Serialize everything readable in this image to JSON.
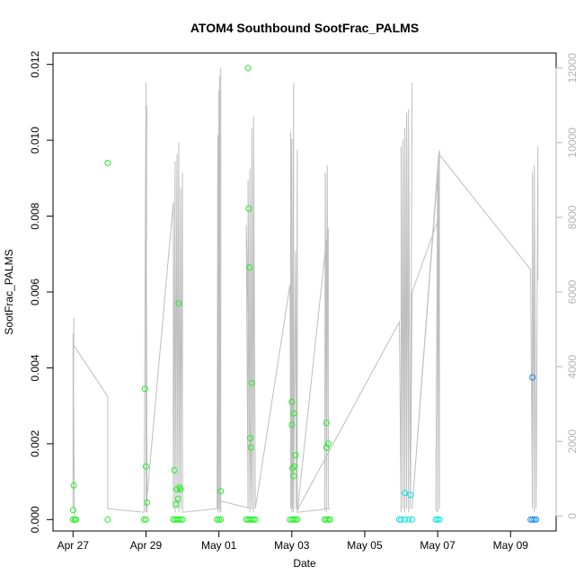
{
  "chart_data": {
    "type": "scatter",
    "title": "ATOM4 Southbound SootFrac_PALMS",
    "xlabel": "Date",
    "ylabel": "SootFrac_PALMS",
    "x_ticks": [
      "Apr 27",
      "Apr 29",
      "May 01",
      "May 03",
      "May 05",
      "May 07",
      "May 09"
    ],
    "x_tick_days": [
      0,
      2,
      4,
      6,
      8,
      10,
      12
    ],
    "xlim_days": [
      -0.55,
      13.25
    ],
    "y_ticks": [
      "0.000",
      "0.002",
      "0.004",
      "0.006",
      "0.008",
      "0.010",
      "0.012"
    ],
    "ylim": [
      -0.0003,
      0.0123
    ],
    "y2_ticks": [
      "0",
      "2000",
      "4000",
      "6000",
      "8000",
      "10000",
      "12000"
    ],
    "y2lim": [
      -400,
      12400
    ],
    "grid": false,
    "series": [
      {
        "values": [
          [
            0.0,
            0.0
          ],
          [
            0.05,
            0.0
          ],
          [
            0.08,
            0.0
          ],
          [
            0.0,
            0.00025
          ],
          [
            0.02,
            0.0009
          ],
          [
            0.95,
            0.0094
          ],
          [
            0.95,
            0.0
          ],
          [
            1.95,
            0.0
          ],
          [
            2.0,
            0.0
          ],
          [
            1.97,
            0.00345
          ],
          [
            2.0,
            0.0014
          ],
          [
            2.03,
            0.00045
          ],
          [
            2.75,
            0.0
          ],
          [
            2.8,
            0.0
          ],
          [
            2.85,
            0.0
          ],
          [
            2.9,
            0.0
          ],
          [
            2.95,
            0.0
          ],
          [
            2.78,
            0.0013
          ],
          [
            2.82,
            0.0004
          ],
          [
            2.85,
            0.0008
          ],
          [
            2.88,
            0.00055
          ],
          [
            2.9,
            0.0057
          ],
          [
            2.92,
            0.00085
          ],
          [
            2.95,
            0.0008
          ],
          [
            3.0,
            0.0
          ],
          [
            3.95,
            0.0
          ],
          [
            4.0,
            0.0
          ],
          [
            4.05,
            0.0
          ],
          [
            4.05,
            0.00075
          ],
          [
            4.75,
            0.0
          ],
          [
            4.8,
            0.0
          ],
          [
            4.85,
            0.0
          ],
          [
            4.9,
            0.0
          ],
          [
            4.95,
            0.0
          ],
          [
            5.0,
            0.0
          ],
          [
            4.8,
            0.0119
          ],
          [
            4.82,
            0.0082
          ],
          [
            4.84,
            0.00665
          ],
          [
            4.86,
            0.00215
          ],
          [
            4.88,
            0.0019
          ],
          [
            4.9,
            0.0036
          ],
          [
            5.95,
            0.0
          ],
          [
            6.0,
            0.0
          ],
          [
            6.05,
            0.0
          ],
          [
            6.1,
            0.0
          ],
          [
            6.15,
            0.0
          ],
          [
            6.0,
            0.0031
          ],
          [
            6.0,
            0.0025
          ],
          [
            6.05,
            0.0028
          ],
          [
            6.1,
            0.0017
          ],
          [
            6.02,
            0.00135
          ],
          [
            6.07,
            0.0014
          ],
          [
            6.05,
            0.00115
          ],
          [
            6.9,
            0.0
          ],
          [
            6.95,
            0.0
          ],
          [
            7.0,
            0.0
          ],
          [
            7.05,
            0.0
          ],
          [
            6.95,
            0.00255
          ],
          [
            6.95,
            0.0019
          ],
          [
            7.0,
            0.002
          ]
        ],
        "color": "#22ee22"
      },
      {
        "values": [
          [
            8.95,
            0.0
          ],
          [
            9.0,
            0.0
          ],
          [
            9.1,
            0.0
          ],
          [
            9.2,
            0.0
          ],
          [
            9.3,
            0.0
          ],
          [
            9.1,
            0.0007
          ],
          [
            9.25,
            0.00065
          ],
          [
            9.95,
            0.0
          ],
          [
            10.0,
            0.0
          ],
          [
            10.05,
            0.0
          ]
        ],
        "color": "#00e5e5"
      },
      {
        "values": [
          [
            12.55,
            0.0
          ],
          [
            12.6,
            0.0
          ],
          [
            12.65,
            0.0
          ],
          [
            12.7,
            0.0
          ],
          [
            12.6,
            0.00375
          ]
        ],
        "color": "#1a8ce8"
      }
    ],
    "secondary_line": {
      "color": "#bebebe",
      "axis": "right",
      "x": [
        0.0,
        0.02,
        0.0,
        0.0,
        0.04,
        0.0,
        0.95,
        0.95,
        1.95,
        2.0,
        2.0,
        2.02,
        2.0,
        2.0,
        2.03,
        2.0,
        2.03,
        2.0,
        2.0,
        2.75,
        2.75,
        2.8,
        2.8,
        2.85,
        2.85,
        2.9,
        2.9,
        2.95,
        2.95,
        3.0,
        3.0,
        3.0,
        3.95,
        3.97,
        3.97,
        4.0,
        4.0,
        4.02,
        4.03,
        4.05,
        4.05,
        4.05,
        4.9,
        4.75,
        4.8,
        4.8,
        4.85,
        4.85,
        4.9,
        4.9,
        4.95,
        4.95,
        5.0,
        5.0,
        5.95,
        5.97,
        5.97,
        6.0,
        6.0,
        6.02,
        6.05,
        6.05,
        6.1,
        6.12,
        6.15,
        6.15,
        6.95,
        6.95,
        6.9,
        6.92,
        6.95,
        6.97,
        7.0,
        7.0,
        7.0,
        7.05,
        6.15,
        6.17,
        8.95,
        9.0,
        9.0,
        9.05,
        9.05,
        9.1,
        9.1,
        9.15,
        9.15,
        9.2,
        9.2,
        9.25,
        9.3,
        9.25,
        9.3,
        10.0,
        10.0,
        9.95,
        10.0,
        10.0,
        10.02,
        10.05,
        10.05,
        9.3,
        10.03,
        12.55,
        12.6,
        12.6,
        12.65,
        12.65,
        12.7,
        12.75,
        12.75
      ],
      "y": [
        200,
        5300,
        200,
        4900,
        0,
        4600,
        3200,
        200,
        100,
        11600,
        200,
        11000,
        100,
        10500,
        200,
        9200,
        100,
        8200,
        200,
        8400,
        200,
        9500,
        100,
        9700,
        200,
        10000,
        100,
        8800,
        200,
        9200,
        100,
        100,
        200,
        10200,
        100,
        11400,
        200,
        11800,
        100,
        12000,
        100,
        400,
        200,
        7800,
        200,
        9000,
        100,
        9300,
        200,
        10400,
        100,
        10700,
        200,
        200,
        6200,
        200,
        10300,
        100,
        10100,
        200,
        11600,
        100,
        7100,
        200,
        9800,
        100,
        7400,
        200,
        200,
        9200,
        100,
        9400,
        200,
        7700,
        200,
        200,
        100,
        200,
        5200,
        100,
        9900,
        200,
        10100,
        100,
        10400,
        200,
        10800,
        100,
        10900,
        200,
        11600,
        200,
        6000,
        7900,
        100,
        200,
        9300,
        100,
        9500,
        200,
        9800,
        200,
        9700,
        6600,
        200,
        9200,
        100,
        9400,
        200,
        9900,
        6300
      ]
    }
  }
}
